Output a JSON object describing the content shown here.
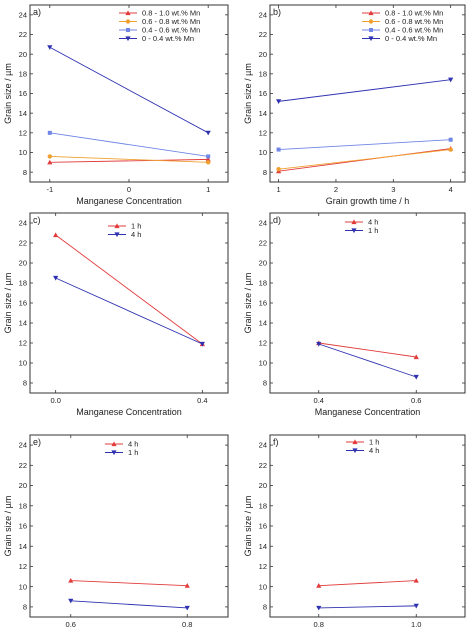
{
  "chart_data": [
    {
      "type": "line",
      "panel_label": "a)",
      "xlabel": "Manganese Concentration",
      "ylabel": "Grain size / µm",
      "x": [
        -1,
        1
      ],
      "x_ticks": [
        -1,
        0,
        1
      ],
      "x_tick_labels": [
        "-1",
        "0",
        "1"
      ],
      "xlim": [
        -1.25,
        1.25
      ],
      "ylim": [
        7,
        25
      ],
      "y_ticks": [
        8,
        10,
        12,
        14,
        16,
        18,
        20,
        22,
        24
      ],
      "legend_position": "top-right",
      "series": [
        {
          "name": "0.8 - 1.0 wt.% Mn",
          "values": [
            9.0,
            9.3
          ],
          "color": "#e23b3b",
          "marker": "triangle-up"
        },
        {
          "name": "0.6 - 0.8 wt.% Mn",
          "values": [
            9.6,
            9.0
          ],
          "color": "#f0a030",
          "marker": "circle"
        },
        {
          "name": "0.4 - 0.6 wt.% Mn",
          "values": [
            12.0,
            9.6
          ],
          "color": "#6f86e6",
          "marker": "square"
        },
        {
          "name": "0 - 0.4 wt.% Mn",
          "values": [
            20.7,
            12.0
          ],
          "color": "#2f32b0",
          "marker": "triangle-down"
        }
      ]
    },
    {
      "type": "line",
      "panel_label": "b)",
      "xlabel": "Grain growth time / h",
      "ylabel": "Grain size / µm",
      "x": [
        1,
        4
      ],
      "x_ticks": [
        1,
        2,
        3,
        4
      ],
      "x_tick_labels": [
        "1",
        "2",
        "3",
        "4"
      ],
      "xlim": [
        0.85,
        4.25
      ],
      "ylim": [
        7,
        25
      ],
      "y_ticks": [
        8,
        10,
        12,
        14,
        16,
        18,
        20,
        22,
        24
      ],
      "legend_position": "top-right",
      "series": [
        {
          "name": "0.8 - 1.0 wt.% Mn",
          "values": [
            8.1,
            10.4
          ],
          "color": "#e23b3b",
          "marker": "triangle-up"
        },
        {
          "name": "0.6 - 0.8 wt.% Mn",
          "values": [
            8.3,
            10.3
          ],
          "color": "#f0a030",
          "marker": "circle"
        },
        {
          "name": "0.4 - 0.6 wt.% Mn",
          "values": [
            10.3,
            11.3
          ],
          "color": "#6f86e6",
          "marker": "square"
        },
        {
          "name": "0 - 0.4 wt.% Mn",
          "values": [
            15.2,
            17.4
          ],
          "color": "#2f32b0",
          "marker": "triangle-down"
        }
      ]
    },
    {
      "type": "line",
      "panel_label": "c)",
      "xlabel": "Manganese Concentration",
      "ylabel": "Grain size / µm",
      "x": [
        0.0,
        0.4
      ],
      "x_ticks": [
        0.0,
        0.4
      ],
      "x_tick_labels": [
        "0.0",
        "0.4"
      ],
      "xlim": [
        -0.07,
        0.47
      ],
      "ylim": [
        7,
        25
      ],
      "y_ticks": [
        8,
        10,
        12,
        14,
        16,
        18,
        20,
        22,
        24
      ],
      "legend_position": "top-center",
      "series": [
        {
          "name": "1 h",
          "values": [
            22.8,
            11.9
          ],
          "color": "#e23b3b",
          "marker": "triangle-up"
        },
        {
          "name": "4 h",
          "values": [
            18.5,
            11.9
          ],
          "color": "#2f32b0",
          "marker": "triangle-down"
        }
      ]
    },
    {
      "type": "line",
      "panel_label": "d)",
      "xlabel": "Manganese Concentration",
      "ylabel": "Grain size / µm",
      "x": [
        0.4,
        0.6
      ],
      "x_ticks": [
        0.4,
        0.6
      ],
      "x_tick_labels": [
        "0.4",
        "0.6"
      ],
      "xlim": [
        0.3,
        0.7
      ],
      "ylim": [
        7,
        25
      ],
      "y_ticks": [
        8,
        10,
        12,
        14,
        16,
        18,
        20,
        22,
        24
      ],
      "legend_position": "top-center",
      "series": [
        {
          "name": "4 h",
          "values": [
            12.0,
            10.6
          ],
          "color": "#e23b3b",
          "marker": "triangle-up"
        },
        {
          "name": "1 h",
          "values": [
            11.9,
            8.6
          ],
          "color": "#2f32b0",
          "marker": "triangle-down"
        }
      ]
    },
    {
      "type": "line",
      "panel_label": "e)",
      "xlabel": "Manganese Concentration",
      "ylabel": "Grain size / µm",
      "x": [
        0.6,
        0.8
      ],
      "x_ticks": [
        0.6,
        0.8
      ],
      "x_tick_labels": [
        "0.6",
        "0.8"
      ],
      "xlim": [
        0.53,
        0.87
      ],
      "ylim": [
        7,
        25
      ],
      "y_ticks": [
        8,
        10,
        12,
        14,
        16,
        18,
        20,
        22,
        24
      ],
      "legend_position": "top-center",
      "series": [
        {
          "name": "4 h",
          "values": [
            10.6,
            10.1
          ],
          "color": "#e23b3b",
          "marker": "triangle-up"
        },
        {
          "name": "1 h",
          "values": [
            8.6,
            7.9
          ],
          "color": "#2f32b0",
          "marker": "triangle-down"
        }
      ]
    },
    {
      "type": "line",
      "panel_label": "f)",
      "xlabel": "Manganese Concentration",
      "ylabel": "Grain size / µm",
      "x": [
        0.8,
        1.0
      ],
      "x_ticks": [
        0.8,
        1.0
      ],
      "x_tick_labels": [
        "0.8",
        "1.0"
      ],
      "xlim": [
        0.7,
        1.1
      ],
      "ylim": [
        7,
        25
      ],
      "y_ticks": [
        8,
        10,
        12,
        14,
        16,
        18,
        20,
        22,
        24
      ],
      "legend_position": "top-center",
      "series": [
        {
          "name": "1 h",
          "values": [
            10.1,
            10.6
          ],
          "color": "#e23b3b",
          "marker": "triangle-up"
        },
        {
          "name": "4 h",
          "values": [
            7.9,
            8.1
          ],
          "color": "#2f32b0",
          "marker": "triangle-down"
        }
      ]
    }
  ]
}
